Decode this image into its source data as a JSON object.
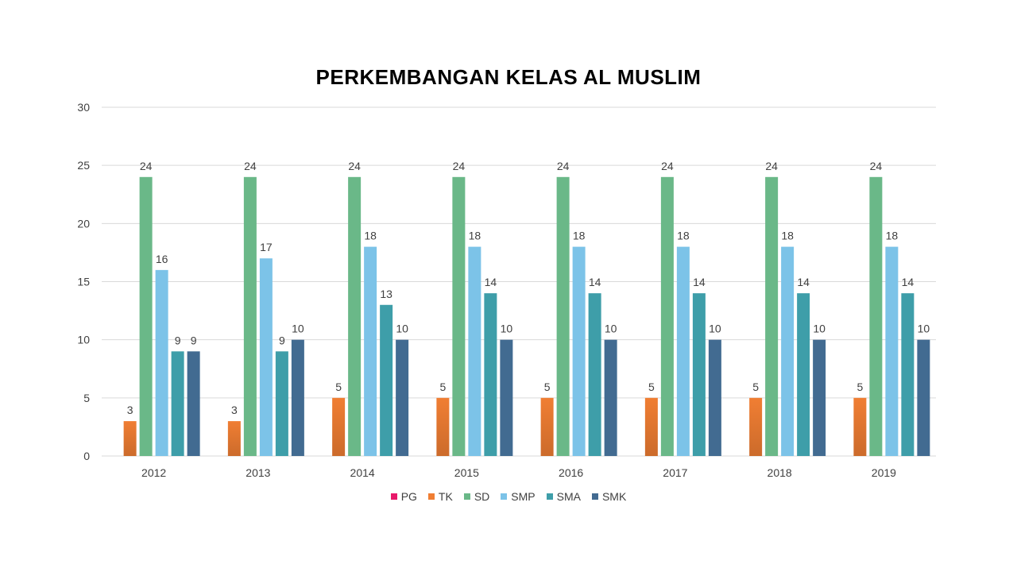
{
  "chart_data": {
    "type": "bar",
    "title": "PERKEMBANGAN KELAS AL MUSLIM",
    "categories": [
      "2012",
      "2013",
      "2014",
      "2015",
      "2016",
      "2017",
      "2018",
      "2019"
    ],
    "ylim": [
      0,
      30
    ],
    "yticks": [
      0,
      5,
      10,
      15,
      20,
      25,
      30
    ],
    "grid": true,
    "legend_position": "bottom",
    "series": [
      {
        "name": "PG",
        "color": "#e8196a",
        "values": [
          0,
          0,
          0,
          0,
          0,
          0,
          0,
          0
        ]
      },
      {
        "name": "TK",
        "color": "#f07e33",
        "values": [
          3,
          3,
          5,
          5,
          5,
          5,
          5,
          5
        ]
      },
      {
        "name": "SD",
        "color": "#6ab888",
        "values": [
          24,
          24,
          24,
          24,
          24,
          24,
          24,
          24
        ]
      },
      {
        "name": "SMP",
        "color": "#7cc3e8",
        "values": [
          16,
          17,
          18,
          18,
          18,
          18,
          18,
          18
        ]
      },
      {
        "name": "SMA",
        "color": "#3e9ea9",
        "values": [
          9,
          9,
          13,
          14,
          14,
          14,
          14,
          14
        ]
      },
      {
        "name": "SMK",
        "color": "#426b91",
        "values": [
          9,
          10,
          10,
          10,
          10,
          10,
          10,
          10
        ]
      }
    ]
  }
}
